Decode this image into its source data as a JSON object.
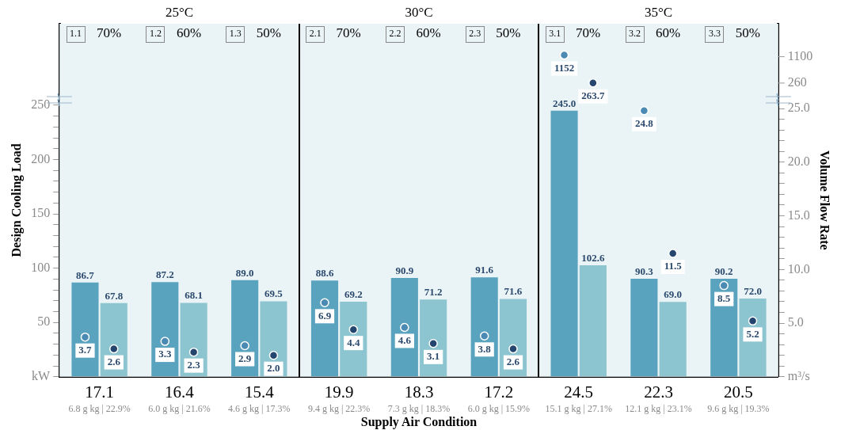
{
  "chart_data": {
    "type": "bar",
    "xlabel": "Supply Air Condition",
    "ylabel": "Design Cooling Load",
    "y2label": "Volume Flow Rate",
    "categories": [
      "17.1\n6.8 g kg | 22.9%",
      "16.4\n6.0 g kg | 21.6%",
      "15.4\n4.6 g kg | 17.3%",
      "19.9\n9.4 g kg | 22.3%",
      "18.3\n7.3 g kg | 18.3%",
      "17.2\n6.0 g kg | 15.9%",
      "24.5\n15.1 g kg | 27.1%",
      "22.3\n12.1 g kg | 23.1%",
      "20.5\n9.6 g kg | 19.3%"
    ],
    "series": [
      {
        "color": "#5aa3bf",
        "values": [
          86.7,
          87.2,
          89.0,
          88.6,
          90.9,
          91.6,
          245.0,
          90.3,
          90.2
        ],
        "value_labels": [
          "86.7",
          "87.2",
          "89.0",
          "88.6",
          "90.9",
          "91.6",
          "245.0",
          "90.3",
          "90.2"
        ]
      },
      {
        "color": "#8cc5cf",
        "values": [
          67.8,
          68.1,
          69.5,
          69.2,
          71.2,
          71.6,
          102.6,
          69.0,
          72.0
        ],
        "value_labels": [
          "67.8",
          "68.1",
          "69.5",
          "69.2",
          "71.2",
          "71.6",
          "102.6",
          "69.0",
          "72.0"
        ]
      },
      {
        "type": "scatter",
        "axis": "y2",
        "color": "#4a8ab3",
        "x": [
          "17.1\n6.8 g kg | 22.9%",
          "16.4\n6.0 g kg | 21.6%",
          "15.4\n4.6 g kg | 17.3%",
          "19.9\n9.4 g kg | 22.3%",
          "18.3\n7.3 g kg | 18.3%",
          "17.2\n6.0 g kg | 15.9%",
          "24.5\n15.1 g kg | 27.1%",
          "22.3\n12.1 g kg | 23.1%",
          "20.5\n9.6 g kg | 19.3%"
        ],
        "values": [
          3.7,
          3.3,
          2.9,
          6.9,
          4.6,
          3.8,
          null,
          24.8,
          8.5
        ],
        "value_labels": [
          "3.7",
          "3.3",
          "2.9",
          "6.9",
          "4.6",
          "3.8",
          null,
          "24.8",
          "8.5"
        ]
      },
      {
        "type": "scatter",
        "axis": "y2",
        "color": "#24466e",
        "x": [
          "17.1\n6.8 g kg | 22.9%",
          "16.4\n6.0 g kg | 21.6%",
          "15.4\n4.6 g kg | 17.3%",
          "19.9\n9.4 g kg | 22.3%",
          "18.3\n7.3 g kg | 18.3%",
          "17.2\n6.0 g kg | 15.9%",
          "24.5\n15.1 g kg | 27.1%",
          "22.3\n12.1 g kg | 23.1%",
          "20.5\n9.6 g kg | 19.3%"
        ],
        "values": [
          2.6,
          2.3,
          2.0,
          4.4,
          3.1,
          2.6,
          null,
          11.5,
          5.2
        ],
        "value_labels": [
          "2.6",
          "2.3",
          "2.0",
          "4.4",
          "3.1",
          "2.6",
          null,
          "11.5",
          "5.2"
        ]
      },
      {
        "type": "scatter",
        "axis": "y3",
        "color": "#4a8ab3",
        "x": [
          "24.5\n15.1 g kg | 27.1%"
        ],
        "values": [
          1152
        ],
        "value_labels": [
          "1152"
        ]
      },
      {
        "type": "scatter",
        "axis": "y3",
        "color": "#24466e",
        "x": [
          "24.5\n15.1 g kg | 27.1%"
        ],
        "values": [
          263.7
        ],
        "value_labels": [
          "263.7"
        ]
      }
    ],
    "ylim": [
      0,
      325
    ],
    "yticks": [
      {
        "value": 0,
        "label": "kW"
      },
      {
        "value": 10,
        "label": null
      },
      {
        "value": 20,
        "label": null
      },
      {
        "value": 30,
        "label": null
      },
      {
        "value": 40,
        "label": null
      },
      50,
      {
        "value": 60,
        "label": null
      },
      {
        "value": 70,
        "label": null
      },
      {
        "value": 80,
        "label": null
      },
      {
        "value": 90,
        "label": null
      },
      100,
      {
        "value": 110,
        "label": null
      },
      {
        "value": 120,
        "label": null
      },
      {
        "value": 130,
        "label": null
      },
      {
        "value": 140,
        "label": null
      },
      150,
      {
        "value": 160,
        "label": null
      },
      {
        "value": 170,
        "label": null
      },
      {
        "value": 180,
        "label": null
      },
      {
        "value": 190,
        "label": null
      },
      200,
      {
        "value": 210,
        "label": null
      },
      {
        "value": 220,
        "label": null
      },
      {
        "value": 230,
        "label": null
      },
      {
        "value": 240,
        "label": null
      },
      250
    ],
    "y2lim": [
      0,
      32.9
    ],
    "y2ticks": [
      {
        "value": 0,
        "label": "m³/s"
      },
      {
        "value": 1,
        "label": null
      },
      {
        "value": 2,
        "label": null
      },
      {
        "value": 3,
        "label": null
      },
      {
        "value": 4,
        "label": null
      },
      {
        "value": 5,
        "label": "5.0"
      },
      {
        "value": 6,
        "label": null
      },
      {
        "value": 7,
        "label": null
      },
      {
        "value": 8,
        "label": null
      },
      {
        "value": 9,
        "label": null
      },
      {
        "value": 10,
        "label": "10.0"
      },
      {
        "value": 11,
        "label": null
      },
      {
        "value": 12,
        "label": null
      },
      {
        "value": 13,
        "label": null
      },
      {
        "value": 14,
        "label": null
      },
      {
        "value": 15,
        "label": "15.0"
      },
      {
        "value": 16,
        "label": null
      },
      {
        "value": 17,
        "label": null
      },
      {
        "value": 18,
        "label": null
      },
      {
        "value": 19,
        "label": null
      },
      {
        "value": 20,
        "label": "20.0"
      },
      {
        "value": 21,
        "label": null
      },
      {
        "value": 22,
        "label": null
      },
      {
        "value": 23,
        "label": null
      },
      {
        "value": 24,
        "label": null
      },
      {
        "value": 25,
        "label": "25.0"
      }
    ],
    "y3lim": [
      -9100,
      2150
    ],
    "y3ticks": [
      260,
      1100
    ],
    "marker": "circle",
    "annotations": [
      "25°C",
      "30°C",
      "35°C",
      "1.1",
      "70%",
      "1.2",
      "60%",
      "1.3",
      "50%",
      "2.1",
      "70%",
      "2.2",
      "60%",
      "2.3",
      "50%",
      "3.1",
      "70%",
      "3.2",
      "60%",
      "3.3",
      "50%"
    ]
  }
}
